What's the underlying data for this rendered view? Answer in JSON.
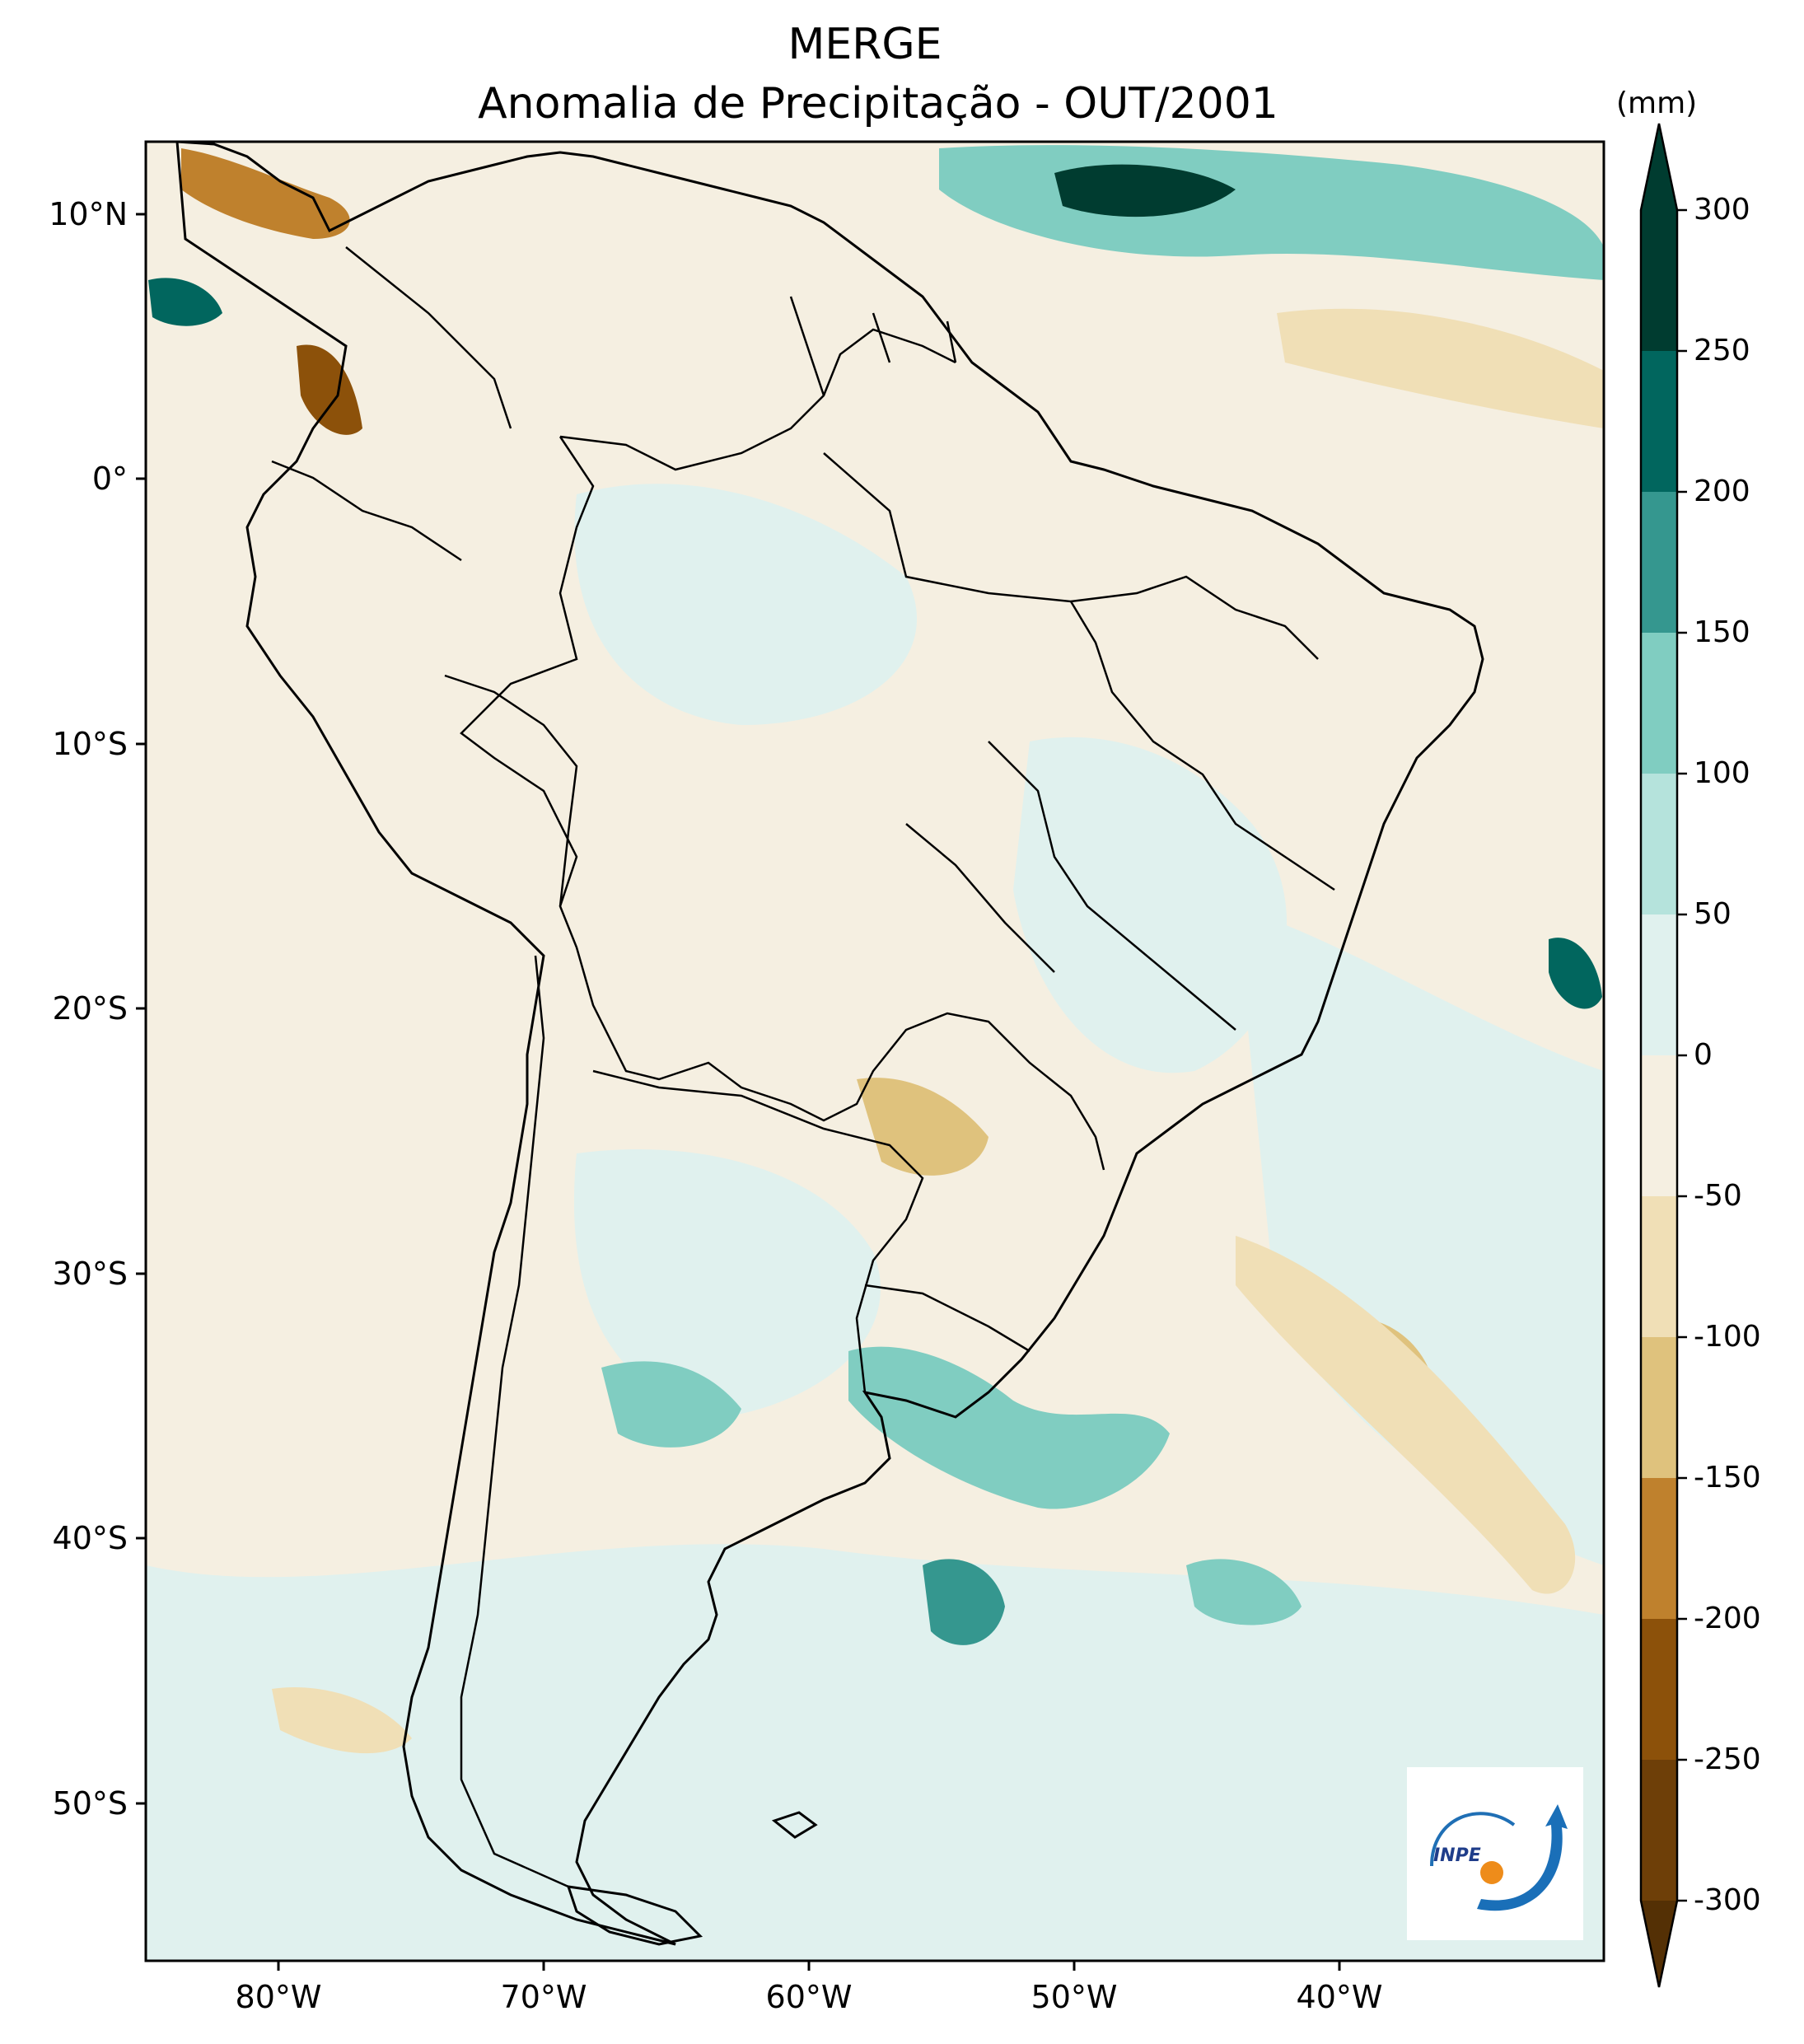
{
  "title": {
    "line1": "MERGE",
    "line2": "Anomalia de Precipitação - OUT/2001"
  },
  "map": {
    "lon_range": [
      -85,
      -30
    ],
    "lat_range": [
      -56,
      13
    ],
    "x_ticks": [
      {
        "value": -80,
        "label": "80°W"
      },
      {
        "value": -70,
        "label": "70°W"
      },
      {
        "value": -60,
        "label": "60°W"
      },
      {
        "value": -50,
        "label": "50°W"
      },
      {
        "value": -40,
        "label": "40°W"
      }
    ],
    "y_ticks": [
      {
        "value": 10,
        "label": "10°N"
      },
      {
        "value": 0,
        "label": "0°"
      },
      {
        "value": -10,
        "label": "10°S"
      },
      {
        "value": -20,
        "label": "20°S"
      },
      {
        "value": -30,
        "label": "30°S"
      },
      {
        "value": -40,
        "label": "40°S"
      },
      {
        "value": -50,
        "label": "50°S"
      }
    ]
  },
  "colorbar": {
    "unit": "(mm)",
    "levels": [
      "300",
      "250",
      "200",
      "150",
      "100",
      "50",
      "0",
      "-50",
      "-100",
      "-150",
      "-200",
      "-250",
      "-300"
    ],
    "colors": [
      "#003c30",
      "#01665e",
      "#35978f",
      "#80cdc1",
      "#b5e3dc",
      "#e0f1ee",
      "#f5efe1",
      "#f0dfb6",
      "#dfc27d",
      "#bf812d",
      "#8c510a",
      "#6e3f08",
      "#543005"
    ],
    "top_color": "#003c30",
    "bottom_color": "#543005"
  },
  "logo": {
    "text": "INPE"
  }
}
